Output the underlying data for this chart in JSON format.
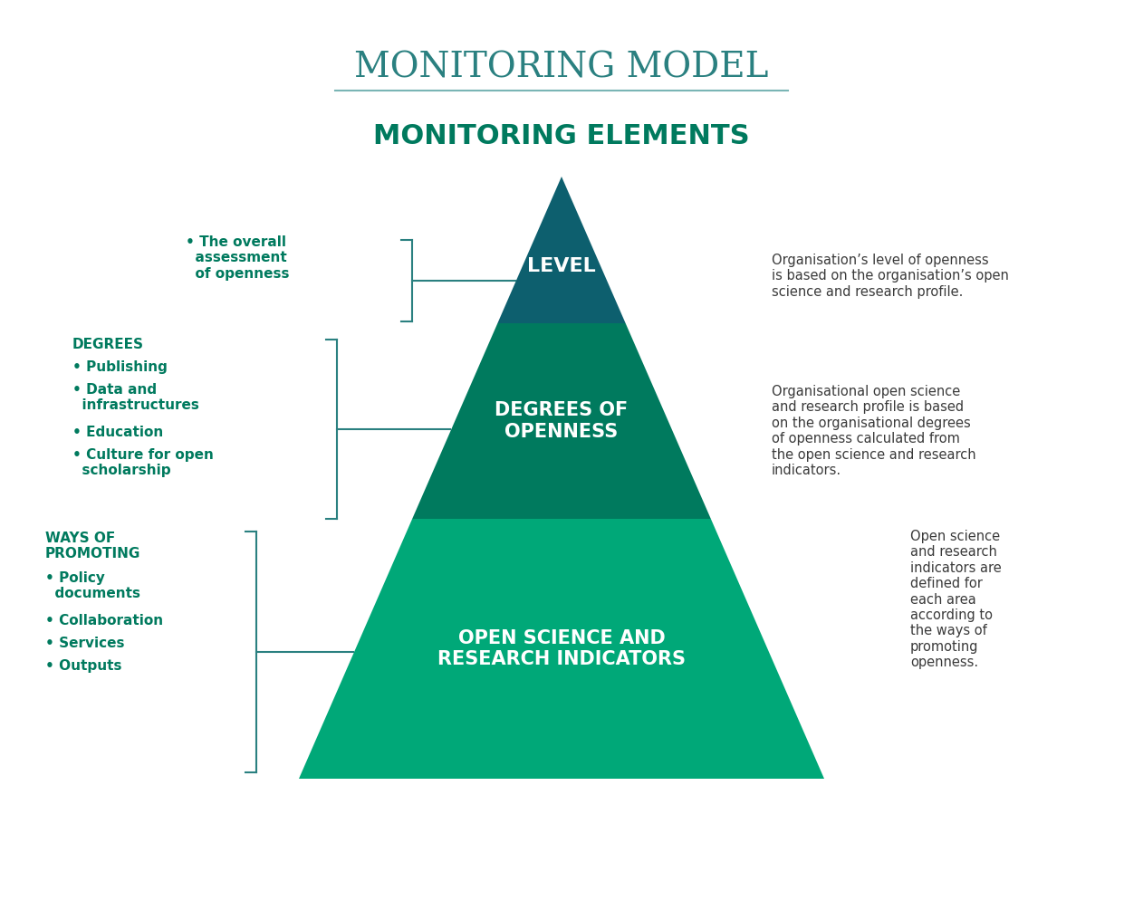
{
  "title": "MONITORING MODEL",
  "title_color": "#2a8080",
  "title_line_color": "#7ab5b5",
  "subtitle": "MONITORING ELEMENTS",
  "subtitle_color": "#007a5e",
  "bg_color": "#ffffff",
  "pyramid": {
    "top_color": "#0d5f6e",
    "mid_color": "#007a5e",
    "bot_color": "#00a878",
    "top_label": "LEVEL",
    "mid_label": "DEGREES OF\nOPENNESS",
    "bot_label": "OPEN SCIENCE AND\nRESEARCH INDICATORS",
    "label_color": "#ffffff"
  },
  "left_top_item": "• The overall\n  assessment\n  of openness",
  "left_mid_header": "DEGREES",
  "left_mid_items": [
    "• Publishing",
    "• Data and\n  infrastructures",
    "• Education",
    "• Culture for open\n  scholarship"
  ],
  "left_bot_header": "WAYS OF\nPROMOTING",
  "left_bot_items": [
    "• Policy\n  documents",
    "• Collaboration",
    "• Services",
    "• Outputs"
  ],
  "right_top_text": "Organisation’s level of openness\nis based on the organisation’s open\nscience and research profile.",
  "right_mid_text": "Organisational open science\nand research profile is based\non the organisational degrees\nof openness calculated from\nthe open science and research\nindicators.",
  "right_bot_text": "Open science\nand research\nindicators are\ndefined for\neach area\naccording to\nthe ways of\npromoting\nopenness.",
  "teal_color": "#007a5e",
  "dark_text_color": "#3a3a3a",
  "bracket_color": "#2a8080"
}
